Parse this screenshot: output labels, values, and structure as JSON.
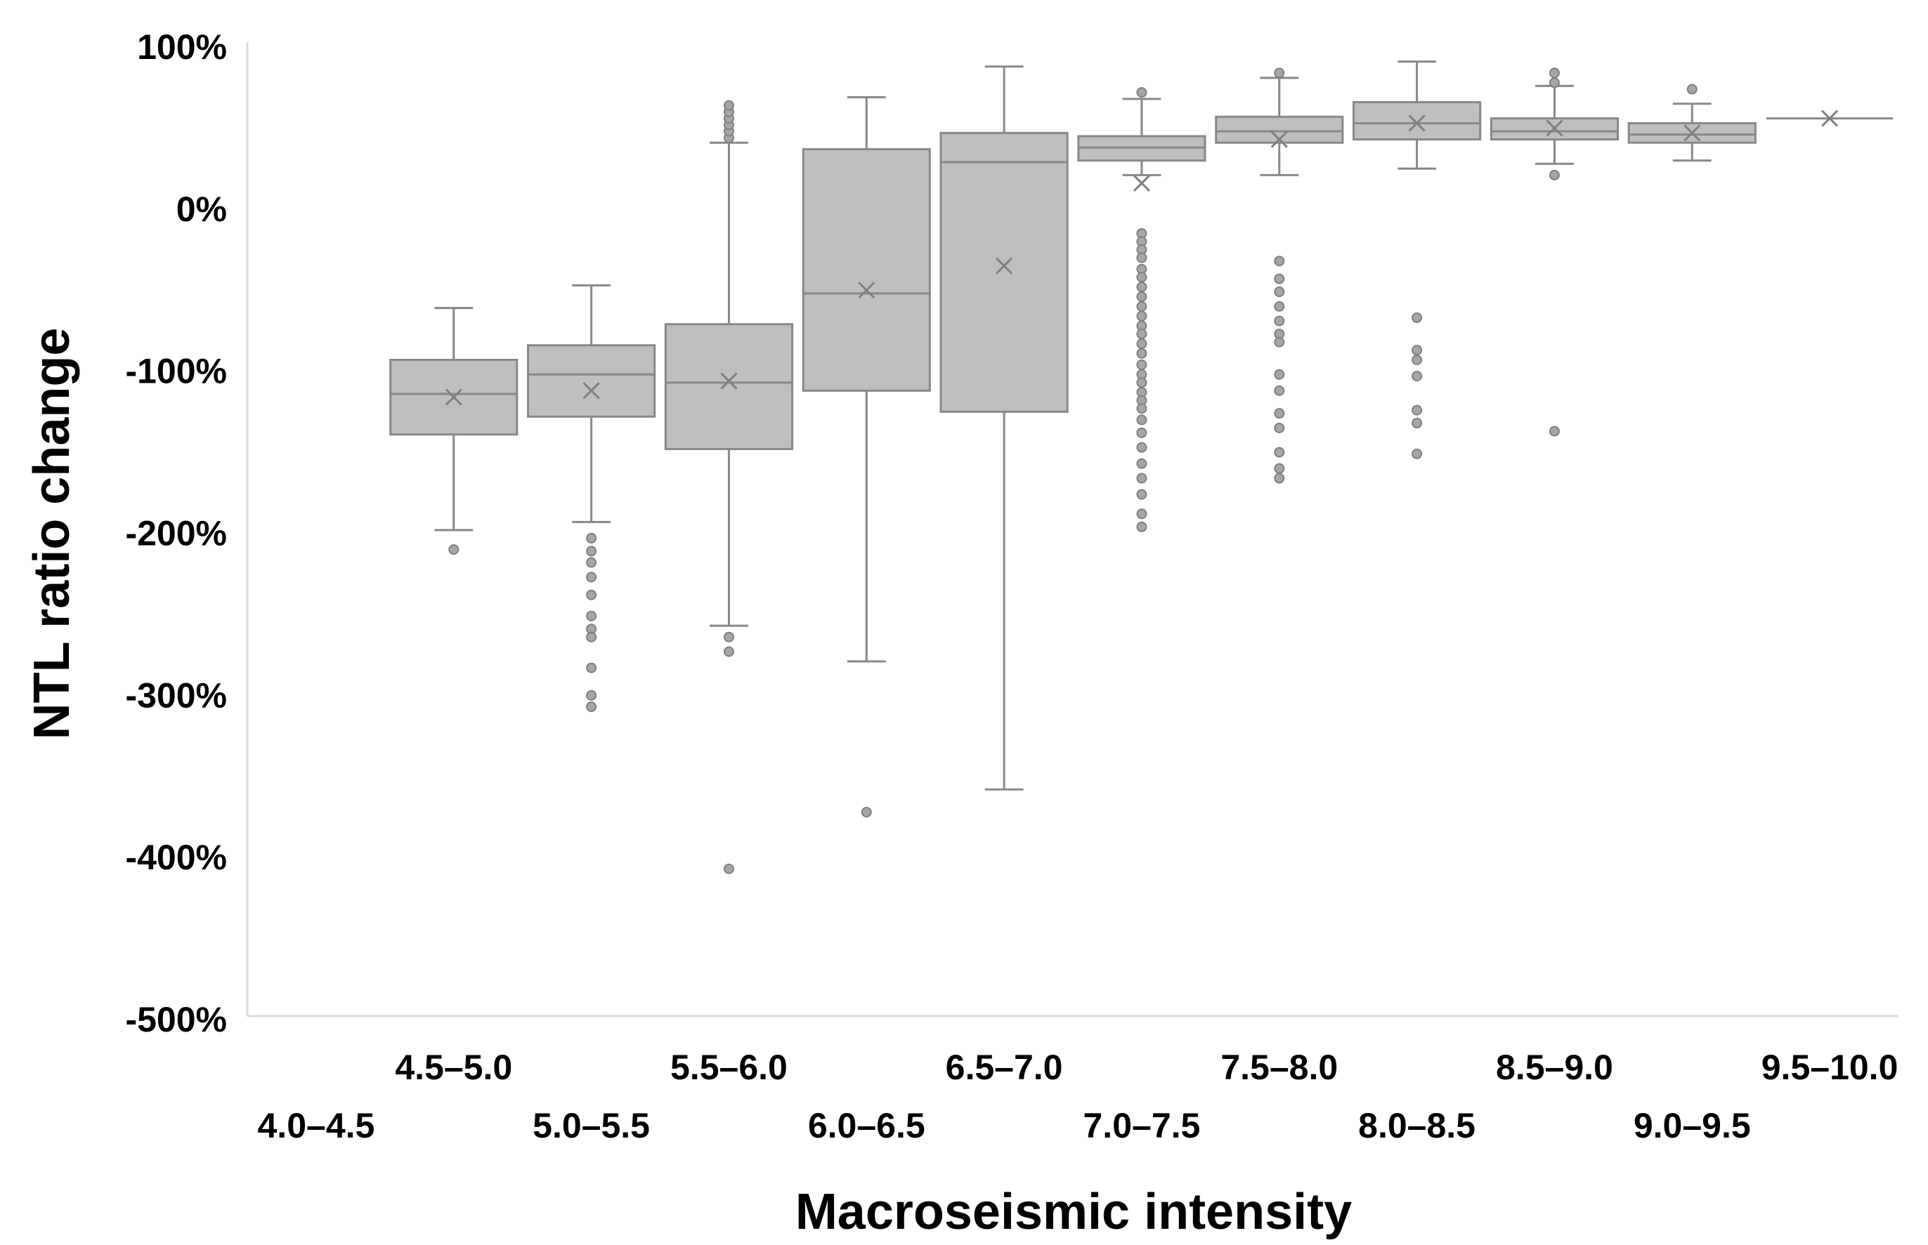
{
  "chart_data": {
    "type": "box",
    "title": "",
    "xlabel": "Macroseismic intensity",
    "ylabel": "NTL ratio change",
    "ylim": [
      -500,
      100
    ],
    "yticks": [
      100,
      0,
      -100,
      -200,
      -300,
      -400,
      -500
    ],
    "ytick_labels": [
      "100%",
      "0%",
      "-100%",
      "-200%",
      "-300%",
      "-400%",
      "-500%"
    ],
    "categories": [
      "4.0–4.5",
      "4.5–5.0",
      "5.0–5.5",
      "5.5–6.0",
      "6.0–6.5",
      "6.5–7.0",
      "7.0–7.5",
      "7.5–8.0",
      "8.0–8.5",
      "8.5–9.0",
      "9.0–9.5",
      "9.5–10.0"
    ],
    "box_fill": "#bfbfbf",
    "box_stroke": "#888888",
    "outlier_fill": "#a6a6a6",
    "boxes": [
      {
        "category": "4.0–4.5"
      },
      {
        "category": "4.5–5.0",
        "whisker_low": -198,
        "q1": -139,
        "median": -114,
        "q3": -93,
        "whisker_high": -61,
        "mean": -116,
        "outliers": [
          -210
        ]
      },
      {
        "category": "5.0–5.5",
        "whisker_low": -193,
        "q1": -128,
        "median": -102,
        "q3": -84,
        "whisker_high": -47,
        "mean": -112,
        "outliers": [
          -203,
          -211,
          -218,
          -227,
          -238,
          -251,
          -259,
          -264,
          -283,
          -300,
          -307
        ]
      },
      {
        "category": "5.5–6.0",
        "whisker_low": -257,
        "q1": -148,
        "median": -107,
        "q3": -71,
        "whisker_high": 41,
        "mean": -106,
        "outliers": [
          -264,
          -273,
          -407,
          44,
          48,
          52,
          56,
          60,
          64
        ]
      },
      {
        "category": "6.0–6.5",
        "whisker_low": -279,
        "q1": -112,
        "median": -52,
        "q3": 37,
        "whisker_high": 69,
        "mean": -50,
        "outliers": [
          -372
        ]
      },
      {
        "category": "6.5–7.0",
        "whisker_low": -358,
        "q1": -125,
        "median": 29,
        "q3": 47,
        "whisker_high": 88,
        "mean": -35,
        "outliers": []
      },
      {
        "category": "7.0–7.5",
        "whisker_low": 21,
        "q1": 30,
        "median": 38,
        "q3": 45,
        "whisker_high": 68,
        "mean": 16,
        "outliers": [
          72,
          -15,
          -20,
          -25,
          -30,
          -37,
          -42,
          -48,
          -54,
          -60,
          -66,
          -72,
          -77,
          -83,
          -89,
          -96,
          -102,
          -107,
          -113,
          -118,
          -123,
          -130,
          -138,
          -147,
          -157,
          -166,
          -176,
          -188,
          -196
        ]
      },
      {
        "category": "7.5–8.0",
        "whisker_low": 21,
        "q1": 41,
        "median": 48,
        "q3": 57,
        "whisker_high": 81,
        "mean": 43,
        "outliers": [
          84,
          -32,
          -43,
          -51,
          -60,
          -69,
          -77,
          -82,
          -102,
          -112,
          -126,
          -135,
          -150,
          -160,
          -166
        ]
      },
      {
        "category": "8.0–8.5",
        "whisker_low": 25,
        "q1": 43,
        "median": 53,
        "q3": 66,
        "whisker_high": 91,
        "mean": 53,
        "outliers": [
          -67,
          -87,
          -93,
          -103,
          -124,
          -132,
          -151
        ]
      },
      {
        "category": "8.5–9.0",
        "whisker_low": 28,
        "q1": 43,
        "median": 48,
        "q3": 56,
        "whisker_high": 76,
        "mean": 50,
        "outliers": [
          84,
          78,
          21,
          -137
        ]
      },
      {
        "category": "9.0–9.5",
        "whisker_low": 30,
        "q1": 41,
        "median": 46,
        "q3": 53,
        "whisker_high": 65,
        "mean": 47,
        "outliers": [
          74
        ]
      },
      {
        "category": "9.5–10.0",
        "whisker_low": 56,
        "q1": 56,
        "median": 56,
        "q3": 56,
        "whisker_high": 56,
        "mean": 56,
        "outliers": []
      }
    ]
  }
}
